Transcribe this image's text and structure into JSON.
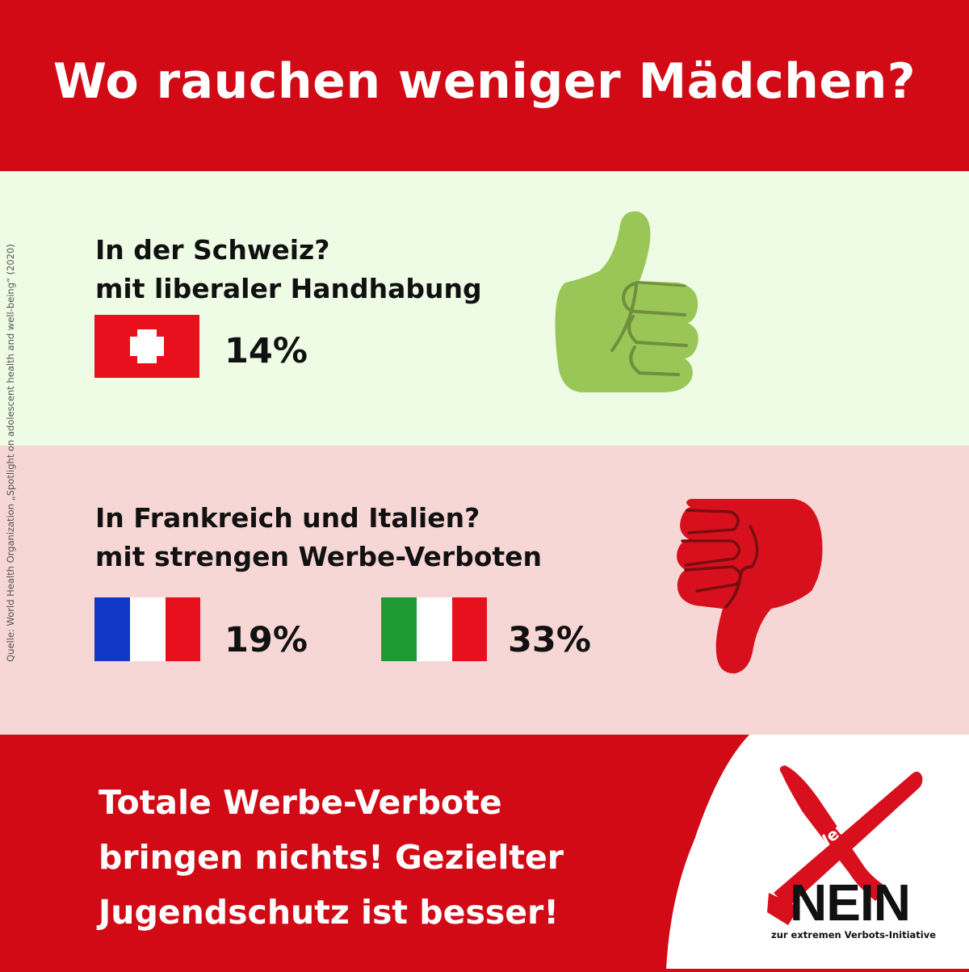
{
  "header": {
    "title": "Wo rauchen weniger Mädchen?"
  },
  "source_note": "Quelle: World Health Organization „Spotlight on adolescent health and well-being“ (2020)",
  "switzerland": {
    "line1": "In der Schweiz?",
    "line2": "mit liberaler Handhabung",
    "percent": "14%",
    "icon": "thumbs-up-icon"
  },
  "france_italy": {
    "line1": "In Frankreich und Italien?",
    "line2": "mit strengen Werbe-Verboten",
    "france_percent": "19%",
    "italy_percent": "33%",
    "icon": "thumbs-down-icon"
  },
  "footer": {
    "slogan_lines": [
      "Totale Werbe-Verbote",
      "bringen nichts! Gezielter",
      "Jugendschutz ist besser!"
    ]
  },
  "logo": {
    "banner_text": "Werbe-Verbote",
    "big_text": "NEIN",
    "sub_text": "zur extremen Verbots-Initiative"
  },
  "colors": {
    "brand_red": "#d10a16",
    "green_panel": "#eefbe5",
    "pink_panel": "#f7d6d6",
    "thumb_green": "#9ac658",
    "thumb_red": "#d8101d"
  }
}
